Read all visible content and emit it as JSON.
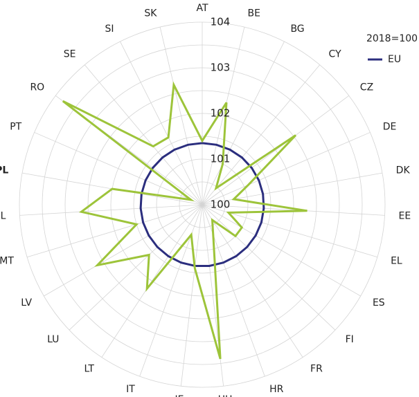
{
  "chart_data": {
    "type": "radar",
    "subtitle": "2018=100",
    "categories": [
      "AT",
      "BE",
      "BG",
      "CY",
      "CZ",
      "DE",
      "DK",
      "EE",
      "EL",
      "ES",
      "FI",
      "FR",
      "HR",
      "HU",
      "IE",
      "IT",
      "LT",
      "LU",
      "LV",
      "MT",
      "NL",
      "PL",
      "PT",
      "RO",
      "SE",
      "SI",
      "SK"
    ],
    "highlight_category": "PL",
    "rlim": [
      100,
      104
    ],
    "rticks": [
      100,
      101,
      102,
      103,
      104
    ],
    "grid": true,
    "legend": "upper right",
    "series": [
      {
        "name": "EU",
        "color": "#2b2e7e",
        "values": [
          101.35,
          101.35,
          101.35,
          101.35,
          101.35,
          101.35,
          101.35,
          101.35,
          101.35,
          101.35,
          101.35,
          101.35,
          101.35,
          101.35,
          101.35,
          101.35,
          101.35,
          101.35,
          101.35,
          101.35,
          101.35,
          101.35,
          101.35,
          101.35,
          101.35,
          101.35,
          101.35
        ]
      },
      {
        "color": "#9dc43a",
        "values": [
          101.4,
          102.3,
          101.0,
          100.47,
          102.55,
          101.1,
          100.7,
          102.3,
          100.6,
          101.0,
          101.0,
          100.4,
          100.7,
          103.4,
          101.4,
          100.7,
          102.2,
          101.6,
          102.65,
          101.5,
          102.65,
          102.0,
          100.27,
          103.8,
          101.67,
          101.65,
          102.7
        ]
      }
    ]
  }
}
